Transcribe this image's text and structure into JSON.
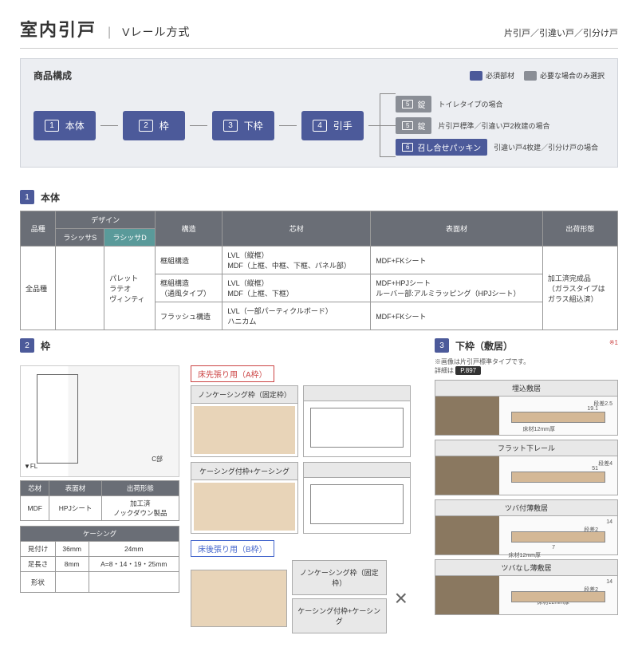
{
  "header": {
    "main": "室内引戸",
    "sep": "|",
    "sub": "Vレール方式",
    "right": "片引戸／引違い戸／引分け戸"
  },
  "composition": {
    "title": "商品構成",
    "legend": [
      {
        "color": "#4c5a9a",
        "label": "必須部材"
      },
      {
        "color": "#8a8e96",
        "label": "必要な場合のみ選択"
      }
    ],
    "flow": [
      {
        "n": "1",
        "t": "本体"
      },
      {
        "n": "2",
        "t": "枠"
      },
      {
        "n": "3",
        "t": "下枠"
      },
      {
        "n": "4",
        "t": "引手"
      }
    ],
    "branch": [
      {
        "n": "5",
        "t": "錠",
        "cls": "box-gray",
        "note": "トイレタイプの場合"
      },
      {
        "n": "5",
        "t": "錠",
        "cls": "box-gray",
        "note": "片引戸標準／引違い戸2枚建の場合"
      },
      {
        "n": "6",
        "t": "召し合せパッキン",
        "cls": "box-blue",
        "note": "引違い戸4枚建／引分け戸の場合"
      }
    ]
  },
  "sec1": {
    "num": "1",
    "title": "本体"
  },
  "table1": {
    "headers": [
      "品種",
      "デザイン",
      "",
      "構造",
      "芯材",
      "表面材",
      "出荷形態"
    ],
    "sub": [
      "",
      "ラシッサS",
      "ラシッサD",
      "",
      "",
      "",
      ""
    ],
    "rows": [
      [
        "全品種",
        "",
        "パレット\nラテオ\nヴィンティ",
        "框組構造",
        "LVL（縦框）\nMDF（上框、中框、下框、パネル部）",
        "MDF+FKシート",
        "加工済完成品\n（ガラスタイプは\nガラス組込済）"
      ],
      [
        "",
        "",
        "",
        "框組構造\n（通風タイプ）",
        "LVL（縦框）\nMDF（上框、下框）",
        "MDF+HPJシート\nルーバー部:アルミラッピング（HPJシート）",
        ""
      ],
      [
        "",
        "",
        "",
        "フラッシュ構造",
        "LVL（一部パーティクルボード）\nハニカム",
        "MDF+FKシート",
        ""
      ]
    ]
  },
  "sec2": {
    "num": "2",
    "title": "枠"
  },
  "sec3": {
    "num": "3",
    "title": "下枠（敷居）",
    "note": "※1",
    "sub": "※画像は片引戸標準タイプです。",
    "ref": "P.897",
    "refpre": "詳細は"
  },
  "frame": {
    "labelA": "床先張り用（A枠）",
    "labelB": "床後張り用（B枠）",
    "t1": "ノンケーシング枠（固定枠）",
    "t2": "ケーシング付枠+ケーシング",
    "c": "C部",
    "h": "H",
    "h12": "12mm"
  },
  "small1": {
    "h": [
      "芯材",
      "表面材",
      "出荷形態"
    ],
    "r": [
      "MDF",
      "HPJシート",
      "加工済\nノックダウン製品"
    ]
  },
  "small2": {
    "title": "ケーシング",
    "h": [
      "見付け",
      "36mm",
      "24mm"
    ],
    "r1": [
      "足長さ",
      "8mm",
      "A=8・14・19・25mm"
    ],
    "r2": [
      "形状",
      "",
      ""
    ]
  },
  "sills": [
    {
      "t": "埋込敷居",
      "d": [
        "段差2.5",
        "19.1",
        "12.8",
        "19.1",
        "床材12mm厚"
      ]
    },
    {
      "t": "フラット下レール",
      "d": [
        "段差4",
        "51",
        "床材12mm厚"
      ]
    },
    {
      "t": "ツバ付薄敷居",
      "d": [
        "14",
        "段差2",
        "7",
        "a",
        "7",
        "床材12mm厚"
      ]
    },
    {
      "t": "ツバなし薄敷居",
      "d": [
        "14",
        "段差2",
        "a",
        "床材12mm厚"
      ]
    }
  ],
  "fl": "▼FL"
}
